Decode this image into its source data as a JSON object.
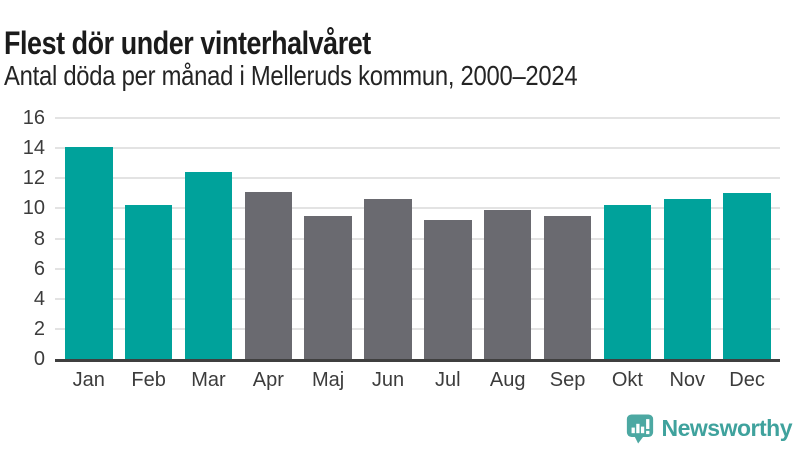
{
  "header": {
    "title": "Flest dör under vinterhalvåret",
    "subtitle": "Antal döda per månad i Melleruds kommun, 2000–2024"
  },
  "chart_data": {
    "type": "bar",
    "title": "Flest dör under vinterhalvåret",
    "subtitle": "Antal döda per månad i Melleruds kommun, 2000–2024",
    "categories": [
      "Jan",
      "Feb",
      "Mar",
      "Apr",
      "Maj",
      "Jun",
      "Jul",
      "Aug",
      "Sep",
      "Okt",
      "Nov",
      "Dec"
    ],
    "values": [
      14.1,
      10.2,
      12.4,
      11.1,
      9.5,
      10.6,
      9.2,
      9.9,
      9.5,
      10.2,
      10.6,
      11.0
    ],
    "bar_groups": [
      "winter",
      "winter",
      "winter",
      "summer",
      "summer",
      "summer",
      "summer",
      "summer",
      "summer",
      "winter",
      "winter",
      "winter"
    ],
    "palette": {
      "winter": "#00A29B",
      "summer": "#6A6A70"
    },
    "xlabel": "",
    "ylabel": "",
    "ylim": [
      0,
      16
    ],
    "yticks": [
      0,
      2,
      4,
      6,
      8,
      10,
      12,
      14,
      16
    ],
    "grid": "horizontal",
    "legend": "none"
  },
  "footer": {
    "brand": "Newsworthy",
    "brand_color": "#3FA29D",
    "logo_icon_color": "#4CA8A2",
    "logo_icon": "newsworthy-speech-bubble-bar-chart-icon"
  },
  "colors": {
    "highlight_teal": "#00A29B",
    "neutral_gray": "#6A6A70",
    "gridline": "#E3E3E3",
    "axis_line": "#3F3F3F",
    "title_text": "#1B1B1B",
    "axis_text": "#3C3C3C"
  }
}
